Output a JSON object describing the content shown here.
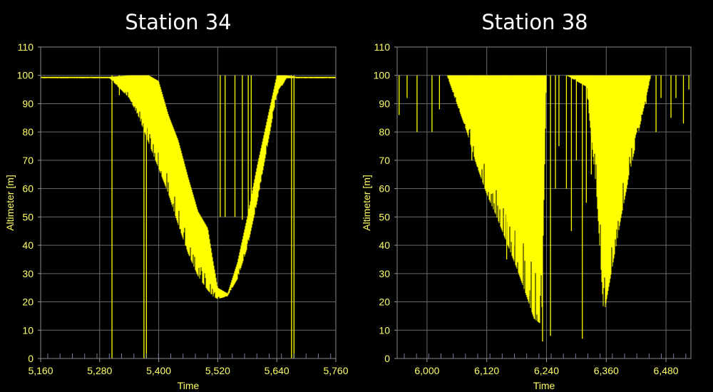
{
  "chart_data": [
    {
      "type": "area",
      "title": "Station 34",
      "xlabel": "Time",
      "ylabel": "Altimeter [m]",
      "xlim": [
        5160,
        5760
      ],
      "ylim": [
        0,
        110
      ],
      "xticks": [
        5160,
        5280,
        5400,
        5520,
        5640,
        5760
      ],
      "xtick_labels": [
        "5,160",
        "5,280",
        "5,400",
        "5,520",
        "5,640",
        "5,760"
      ],
      "yticks": [
        0,
        10,
        20,
        30,
        40,
        50,
        60,
        70,
        80,
        90,
        100,
        110
      ],
      "grid": true,
      "color": "#ffff00",
      "series": [
        {
          "x": [
            5160,
            5300,
            5340,
            5360,
            5380,
            5400,
            5420,
            5440,
            5460,
            5480,
            5500,
            5510,
            5520,
            5540,
            5560,
            5580,
            5600,
            5620,
            5640,
            5660,
            5680,
            5700,
            5760
          ],
          "upper": [
            99.5,
            99.5,
            100,
            100,
            100,
            98,
            86,
            77,
            64,
            52,
            46,
            35,
            25,
            23,
            34,
            50,
            68,
            84,
            100,
            100,
            99.5,
            99.5,
            99.5
          ],
          "lower": [
            99,
            99,
            92,
            85,
            76,
            67,
            58,
            47,
            37,
            29,
            24,
            22,
            21,
            22,
            28,
            39,
            55,
            74,
            93,
            99,
            99,
            99,
            99
          ]
        }
      ],
      "spikes": [
        {
          "x": 5305,
          "y": 0
        },
        {
          "x": 5320,
          "y": 93
        },
        {
          "x": 5370,
          "y": 0
        },
        {
          "x": 5375,
          "y": 0
        },
        {
          "x": 5670,
          "y": 0
        },
        {
          "x": 5675,
          "y": 0
        },
        {
          "x": 5525,
          "y": 50
        },
        {
          "x": 5535,
          "y": 50
        },
        {
          "x": 5555,
          "y": 50
        },
        {
          "x": 5570,
          "y": 49
        },
        {
          "x": 5582,
          "y": 50
        },
        {
          "x": 5588,
          "y": 50
        }
      ]
    },
    {
      "type": "area",
      "title": "Station 38",
      "xlabel": "Time",
      "ylabel": "Altimeter [m]",
      "xlim": [
        5940,
        6530
      ],
      "ylim": [
        0,
        110
      ],
      "xticks": [
        6000,
        6120,
        6240,
        6360,
        6480
      ],
      "xtick_labels": [
        "6,000",
        "6,120",
        "6,240",
        "6,360",
        "6,480"
      ],
      "yticks": [
        0,
        10,
        20,
        30,
        40,
        50,
        60,
        70,
        80,
        90,
        100,
        110
      ],
      "grid": true,
      "color": "#ffff00",
      "series": [
        {
          "x": [
            5940,
            6040,
            6060,
            6080,
            6100,
            6120,
            6140,
            6160,
            6180,
            6200,
            6215,
            6230,
            6240,
            6280,
            6320,
            6340,
            6355,
            6370,
            6390,
            6410,
            6430,
            6450,
            6530
          ],
          "upper": [
            100,
            100,
            100,
            100,
            100,
            100,
            100,
            100,
            100,
            100,
            100,
            100,
            100,
            100,
            100,
            100,
            100,
            100,
            100,
            100,
            100,
            100,
            100
          ],
          "lower": [
            100,
            100,
            90,
            80,
            68,
            58,
            50,
            41,
            32,
            22,
            14,
            12,
            100,
            100,
            96,
            60,
            15,
            30,
            50,
            68,
            84,
            100,
            100
          ]
        }
      ],
      "spikes": [
        {
          "x": 5944,
          "y": 86
        },
        {
          "x": 5960,
          "y": 92
        },
        {
          "x": 5980,
          "y": 80
        },
        {
          "x": 6010,
          "y": 80
        },
        {
          "x": 6025,
          "y": 88
        },
        {
          "x": 6090,
          "y": 70
        },
        {
          "x": 6110,
          "y": 75
        },
        {
          "x": 6160,
          "y": 35
        },
        {
          "x": 6175,
          "y": 40
        },
        {
          "x": 6190,
          "y": 30
        },
        {
          "x": 6205,
          "y": 22
        },
        {
          "x": 6220,
          "y": 20
        },
        {
          "x": 6232,
          "y": 6
        },
        {
          "x": 6248,
          "y": 8
        },
        {
          "x": 6258,
          "y": 60
        },
        {
          "x": 6265,
          "y": 75
        },
        {
          "x": 6280,
          "y": 60
        },
        {
          "x": 6290,
          "y": 45
        },
        {
          "x": 6300,
          "y": 70
        },
        {
          "x": 6312,
          "y": 7
        },
        {
          "x": 6320,
          "y": 55
        },
        {
          "x": 6330,
          "y": 65
        },
        {
          "x": 6440,
          "y": 90
        },
        {
          "x": 6460,
          "y": 80
        },
        {
          "x": 6470,
          "y": 92
        },
        {
          "x": 6490,
          "y": 85
        },
        {
          "x": 6500,
          "y": 92
        },
        {
          "x": 6515,
          "y": 83
        },
        {
          "x": 6526,
          "y": 95
        }
      ]
    }
  ]
}
